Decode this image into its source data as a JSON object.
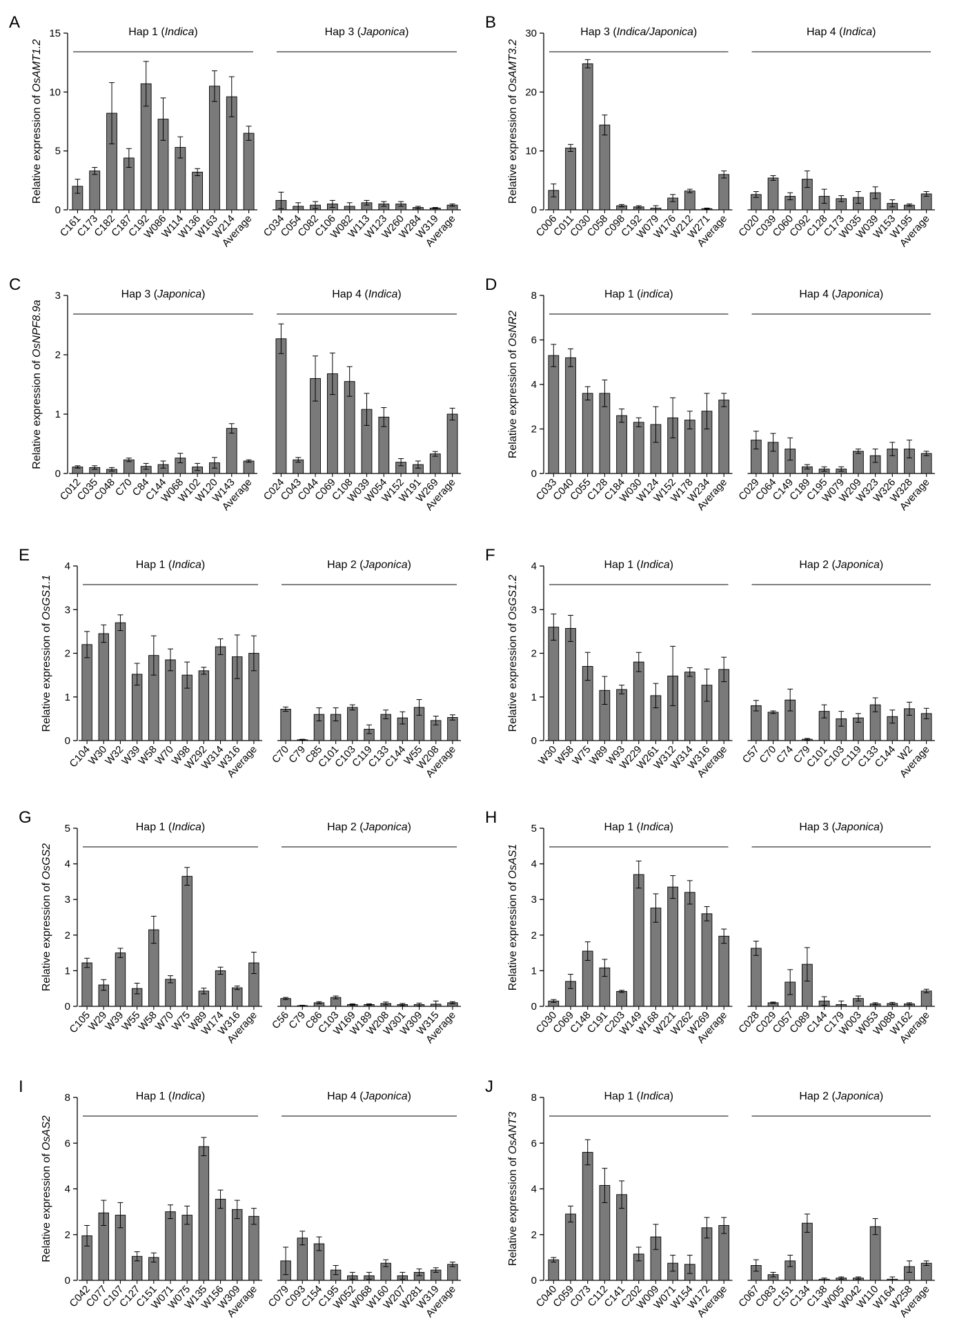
{
  "chart_data": [
    {
      "panel": "A",
      "type": "bar",
      "ylabel": "Relative expression of ",
      "ylabel_gene": "OsAMT1.2",
      "ylim": [
        0,
        15
      ],
      "yticks": [
        0,
        5,
        10,
        15
      ],
      "groups": [
        {
          "label": "Hap 1",
          "sub": "Indica",
          "categories": [
            "C161",
            "C173",
            "C182",
            "C187",
            "C192",
            "W086",
            "W114",
            "W136",
            "W163",
            "W214",
            "Average"
          ],
          "values": [
            2.0,
            3.3,
            8.2,
            4.4,
            10.7,
            7.7,
            5.3,
            3.2,
            10.5,
            9.6,
            6.5
          ],
          "errors": [
            0.6,
            0.3,
            2.6,
            0.8,
            1.9,
            1.8,
            0.9,
            0.3,
            1.3,
            1.7,
            0.6
          ]
        },
        {
          "label": "Hap 3",
          "sub": "Japonica",
          "categories": [
            "C034",
            "C054",
            "C082",
            "C106",
            "W082",
            "W113",
            "W123",
            "W260",
            "W284",
            "W319",
            "Average"
          ],
          "values": [
            0.8,
            0.3,
            0.4,
            0.5,
            0.3,
            0.6,
            0.5,
            0.5,
            0.2,
            0.15,
            0.4
          ],
          "errors": [
            0.7,
            0.3,
            0.3,
            0.3,
            0.3,
            0.2,
            0.2,
            0.2,
            0.1,
            0.05,
            0.1
          ]
        }
      ]
    },
    {
      "panel": "B",
      "type": "bar",
      "ylabel": "Relative expression of ",
      "ylabel_gene": "OsAMT3.2",
      "ylim": [
        0,
        30
      ],
      "yticks": [
        0,
        10,
        20,
        30
      ],
      "groups": [
        {
          "label": "Hap 3",
          "sub": "Indica/Japonica",
          "categories": [
            "C006",
            "C011",
            "C030",
            "C058",
            "C098",
            "C192",
            "W079",
            "W176",
            "W212",
            "W271",
            "Average"
          ],
          "values": [
            3.3,
            10.5,
            24.8,
            14.4,
            0.7,
            0.5,
            0.3,
            2.0,
            3.2,
            0.2,
            6.0
          ],
          "errors": [
            1.1,
            0.6,
            0.7,
            1.7,
            0.2,
            0.2,
            0.4,
            0.6,
            0.3,
            0.1,
            0.6
          ]
        },
        {
          "label": "Hap 4",
          "sub": "Indica",
          "categories": [
            "C020",
            "C039",
            "C060",
            "C092",
            "C128",
            "C173",
            "W035",
            "W039",
            "W153",
            "W195",
            "Average"
          ],
          "values": [
            2.6,
            5.4,
            2.3,
            5.2,
            2.3,
            1.9,
            2.1,
            2.9,
            1.1,
            0.8,
            2.7
          ],
          "errors": [
            0.5,
            0.4,
            0.6,
            1.4,
            1.2,
            0.5,
            1.0,
            1.0,
            0.6,
            0.2,
            0.4
          ]
        }
      ]
    },
    {
      "panel": "C",
      "type": "bar",
      "ylabel": "Relative expression of ",
      "ylabel_gene": "OsNPF8.9a",
      "ylim": [
        0,
        3
      ],
      "yticks": [
        0,
        1,
        2,
        3
      ],
      "groups": [
        {
          "label": "Hap 3",
          "sub": "Japonica",
          "categories": [
            "C012",
            "C035",
            "C048",
            "C70",
            "C84",
            "C144",
            "W068",
            "W102",
            "W120",
            "W143",
            "Average"
          ],
          "values": [
            0.11,
            0.1,
            0.07,
            0.23,
            0.12,
            0.15,
            0.26,
            0.11,
            0.18,
            0.76,
            0.21
          ],
          "errors": [
            0.02,
            0.03,
            0.03,
            0.03,
            0.05,
            0.06,
            0.08,
            0.06,
            0.09,
            0.08,
            0.02
          ]
        },
        {
          "label": "Hap 4",
          "sub": "Indica",
          "categories": [
            "C024",
            "C043",
            "C044",
            "C069",
            "C108",
            "W039",
            "W054",
            "W152",
            "W191",
            "W269",
            "Average"
          ],
          "values": [
            2.27,
            0.23,
            1.6,
            1.68,
            1.55,
            1.08,
            0.95,
            0.19,
            0.15,
            0.33,
            1.0
          ],
          "errors": [
            0.25,
            0.04,
            0.38,
            0.35,
            0.25,
            0.27,
            0.16,
            0.06,
            0.06,
            0.04,
            0.1
          ]
        }
      ]
    },
    {
      "panel": "D",
      "type": "bar",
      "ylabel": "Relative expression of ",
      "ylabel_gene": "OsNR2",
      "ylim": [
        0,
        8
      ],
      "yticks": [
        0,
        2,
        4,
        6,
        8
      ],
      "groups": [
        {
          "label": "Hap 1",
          "sub": "indica",
          "categories": [
            "C033",
            "C040",
            "C055",
            "C128",
            "C184",
            "W030",
            "W124",
            "W152",
            "W178",
            "W234",
            "Average"
          ],
          "values": [
            5.3,
            5.2,
            3.6,
            3.6,
            2.6,
            2.3,
            2.2,
            2.5,
            2.4,
            2.8,
            3.3
          ],
          "errors": [
            0.5,
            0.4,
            0.3,
            0.6,
            0.3,
            0.2,
            0.8,
            0.9,
            0.4,
            0.8,
            0.3
          ]
        },
        {
          "label": "Hap 4",
          "sub": "Japonica",
          "categories": [
            "C029",
            "C064",
            "C149",
            "C189",
            "C195",
            "W079",
            "W209",
            "W323",
            "W326",
            "W328",
            "Average"
          ],
          "values": [
            1.5,
            1.4,
            1.1,
            0.3,
            0.2,
            0.2,
            1.0,
            0.8,
            1.1,
            1.1,
            0.9
          ],
          "errors": [
            0.4,
            0.4,
            0.5,
            0.1,
            0.1,
            0.1,
            0.1,
            0.3,
            0.3,
            0.4,
            0.1
          ]
        }
      ]
    },
    {
      "panel": "E",
      "type": "bar",
      "ylabel": "Relative expression of ",
      "ylabel_gene": "OsGS1.1",
      "ylim": [
        0,
        4
      ],
      "yticks": [
        0,
        1,
        2,
        3,
        4
      ],
      "groups": [
        {
          "label": "Hap 1",
          "sub": "Indica",
          "categories": [
            "C104",
            "W30",
            "W32",
            "W39",
            "W58",
            "W70",
            "W98",
            "W292",
            "W314",
            "W316",
            "Average"
          ],
          "values": [
            2.2,
            2.45,
            2.7,
            1.52,
            1.95,
            1.85,
            1.5,
            1.6,
            2.15,
            1.92,
            2.0
          ],
          "errors": [
            0.3,
            0.2,
            0.18,
            0.25,
            0.45,
            0.25,
            0.3,
            0.08,
            0.18,
            0.5,
            0.4
          ]
        },
        {
          "label": "Hap 2",
          "sub": "Japonica",
          "categories": [
            "C70",
            "C79",
            "C85",
            "C101",
            "C103",
            "C119",
            "C133",
            "C144",
            "W55",
            "W208",
            "Average"
          ],
          "values": [
            0.72,
            0.02,
            0.6,
            0.6,
            0.76,
            0.26,
            0.6,
            0.52,
            0.76,
            0.46,
            0.53
          ],
          "errors": [
            0.05,
            0.01,
            0.15,
            0.15,
            0.06,
            0.1,
            0.1,
            0.14,
            0.18,
            0.1,
            0.06
          ]
        }
      ]
    },
    {
      "panel": "F",
      "type": "bar",
      "ylabel": "Relative expression of ",
      "ylabel_gene": "OsGS1.2",
      "ylim": [
        0,
        4
      ],
      "yticks": [
        0,
        1,
        2,
        3,
        4
      ],
      "groups": [
        {
          "label": "Hap 1",
          "sub": "Indica",
          "categories": [
            "W30",
            "W58",
            "W75",
            "W89",
            "W93",
            "W229",
            "W261",
            "W312",
            "W314",
            "W316",
            "Average"
          ],
          "values": [
            2.6,
            2.57,
            1.7,
            1.15,
            1.17,
            1.8,
            1.03,
            1.48,
            1.57,
            1.27,
            1.63
          ],
          "errors": [
            0.3,
            0.3,
            0.32,
            0.32,
            0.1,
            0.22,
            0.28,
            0.68,
            0.1,
            0.37,
            0.28
          ]
        },
        {
          "label": "Hap 2",
          "sub": "Japonica",
          "categories": [
            "C57",
            "C70",
            "C74",
            "C79",
            "C101",
            "C103",
            "C119",
            "C133",
            "C144",
            "W2",
            "Average"
          ],
          "values": [
            0.8,
            0.65,
            0.93,
            0.03,
            0.67,
            0.5,
            0.52,
            0.82,
            0.55,
            0.73,
            0.62
          ],
          "errors": [
            0.12,
            0.03,
            0.25,
            0.02,
            0.15,
            0.17,
            0.1,
            0.16,
            0.15,
            0.15,
            0.12
          ]
        }
      ]
    },
    {
      "panel": "G",
      "type": "bar",
      "ylabel": "Relative expression of ",
      "ylabel_gene": "OsGS2",
      "ylim": [
        0,
        5
      ],
      "yticks": [
        0,
        1,
        2,
        3,
        4,
        5
      ],
      "groups": [
        {
          "label": "Hap 1",
          "sub": "Indica",
          "categories": [
            "C105",
            "W29",
            "W39",
            "W55",
            "W58",
            "W70",
            "W75",
            "W89",
            "W174",
            "W316",
            "Average"
          ],
          "values": [
            1.22,
            0.6,
            1.5,
            0.5,
            2.15,
            0.76,
            3.65,
            0.43,
            1.0,
            0.52,
            1.22
          ],
          "errors": [
            0.13,
            0.15,
            0.13,
            0.15,
            0.38,
            0.1,
            0.25,
            0.08,
            0.1,
            0.05,
            0.3
          ]
        },
        {
          "label": "Hap 2",
          "sub": "Japonica",
          "categories": [
            "C56",
            "C79",
            "C86",
            "C103",
            "W169",
            "W189",
            "W208",
            "W301",
            "W309",
            "W315",
            "Average"
          ],
          "values": [
            0.22,
            0.02,
            0.1,
            0.25,
            0.05,
            0.05,
            0.08,
            0.05,
            0.05,
            0.06,
            0.1
          ],
          "errors": [
            0.03,
            0.01,
            0.03,
            0.04,
            0.02,
            0.02,
            0.04,
            0.03,
            0.04,
            0.09,
            0.03
          ]
        }
      ]
    },
    {
      "panel": "H",
      "type": "bar",
      "ylabel": "Relative expression of ",
      "ylabel_gene": "OsAS1",
      "ylim": [
        0,
        5
      ],
      "yticks": [
        0,
        1,
        2,
        3,
        4,
        5
      ],
      "groups": [
        {
          "label": "Hap 1",
          "sub": "Indica",
          "categories": [
            "C030",
            "C069",
            "C148",
            "C191",
            "C203",
            "W149",
            "W168",
            "W221",
            "W262",
            "W269",
            "Average"
          ],
          "values": [
            0.15,
            0.7,
            1.55,
            1.08,
            0.42,
            3.7,
            2.76,
            3.35,
            3.2,
            2.6,
            1.97
          ],
          "errors": [
            0.04,
            0.2,
            0.26,
            0.24,
            0.03,
            0.38,
            0.4,
            0.32,
            0.33,
            0.2,
            0.2
          ]
        },
        {
          "label": "Hap 3",
          "sub": "Japonica",
          "categories": [
            "C028",
            "C029",
            "C057",
            "C089",
            "C144",
            "C179",
            "W003",
            "W053",
            "W088",
            "W162",
            "Average"
          ],
          "values": [
            1.63,
            0.1,
            0.68,
            1.18,
            0.15,
            0.05,
            0.22,
            0.07,
            0.08,
            0.07,
            0.43
          ],
          "errors": [
            0.2,
            0.02,
            0.35,
            0.47,
            0.12,
            0.1,
            0.07,
            0.03,
            0.03,
            0.03,
            0.05
          ]
        }
      ]
    },
    {
      "panel": "I",
      "type": "bar",
      "ylabel": "Relative expression of ",
      "ylabel_gene": "OsAS2",
      "ylim": [
        0,
        8
      ],
      "yticks": [
        0,
        2,
        4,
        6,
        8
      ],
      "groups": [
        {
          "label": "Hap 1",
          "sub": "Indica",
          "categories": [
            "C042",
            "C077",
            "C107",
            "C127",
            "C151",
            "W071",
            "W075",
            "W135",
            "W156",
            "W309",
            "Average"
          ],
          "values": [
            1.95,
            2.95,
            2.85,
            1.05,
            1.0,
            3.0,
            2.85,
            5.85,
            3.55,
            3.1,
            2.8
          ],
          "errors": [
            0.45,
            0.55,
            0.55,
            0.2,
            0.2,
            0.3,
            0.4,
            0.4,
            0.4,
            0.4,
            0.35
          ]
        },
        {
          "label": "Hap 4",
          "sub": "Japonica",
          "categories": [
            "C079",
            "C093",
            "C154",
            "C195",
            "W052",
            "W068",
            "W160",
            "W207",
            "W281",
            "W319",
            "Average"
          ],
          "values": [
            0.85,
            1.85,
            1.6,
            0.45,
            0.2,
            0.2,
            0.75,
            0.2,
            0.35,
            0.45,
            0.7
          ],
          "errors": [
            0.6,
            0.3,
            0.3,
            0.2,
            0.15,
            0.15,
            0.15,
            0.15,
            0.15,
            0.1,
            0.1
          ]
        }
      ]
    },
    {
      "panel": "J",
      "type": "bar",
      "ylabel": "Relative expression of ",
      "ylabel_gene": "OsANT3",
      "ylim": [
        0,
        8
      ],
      "yticks": [
        0,
        2,
        4,
        6,
        8
      ],
      "groups": [
        {
          "label": "Hap 1",
          "sub": "Indica",
          "categories": [
            "C040",
            "C059",
            "C073",
            "C112",
            "C141",
            "C202",
            "W009",
            "W071",
            "W154",
            "W172",
            "Average"
          ],
          "values": [
            0.9,
            2.9,
            5.6,
            4.15,
            3.75,
            1.15,
            1.9,
            0.75,
            0.7,
            2.3,
            2.4
          ],
          "errors": [
            0.1,
            0.35,
            0.55,
            0.75,
            0.6,
            0.3,
            0.55,
            0.35,
            0.4,
            0.45,
            0.35
          ]
        },
        {
          "label": "Hap 2",
          "sub": "Japonica",
          "categories": [
            "C067",
            "C083",
            "C151",
            "C134",
            "C138",
            "W005",
            "W042",
            "W110",
            "W164",
            "W258",
            "Average"
          ],
          "values": [
            0.65,
            0.25,
            0.85,
            2.5,
            0.05,
            0.1,
            0.1,
            2.35,
            0.05,
            0.6,
            0.75
          ],
          "errors": [
            0.25,
            0.1,
            0.25,
            0.4,
            0.05,
            0.05,
            0.05,
            0.35,
            0.1,
            0.25,
            0.1
          ]
        }
      ]
    }
  ]
}
